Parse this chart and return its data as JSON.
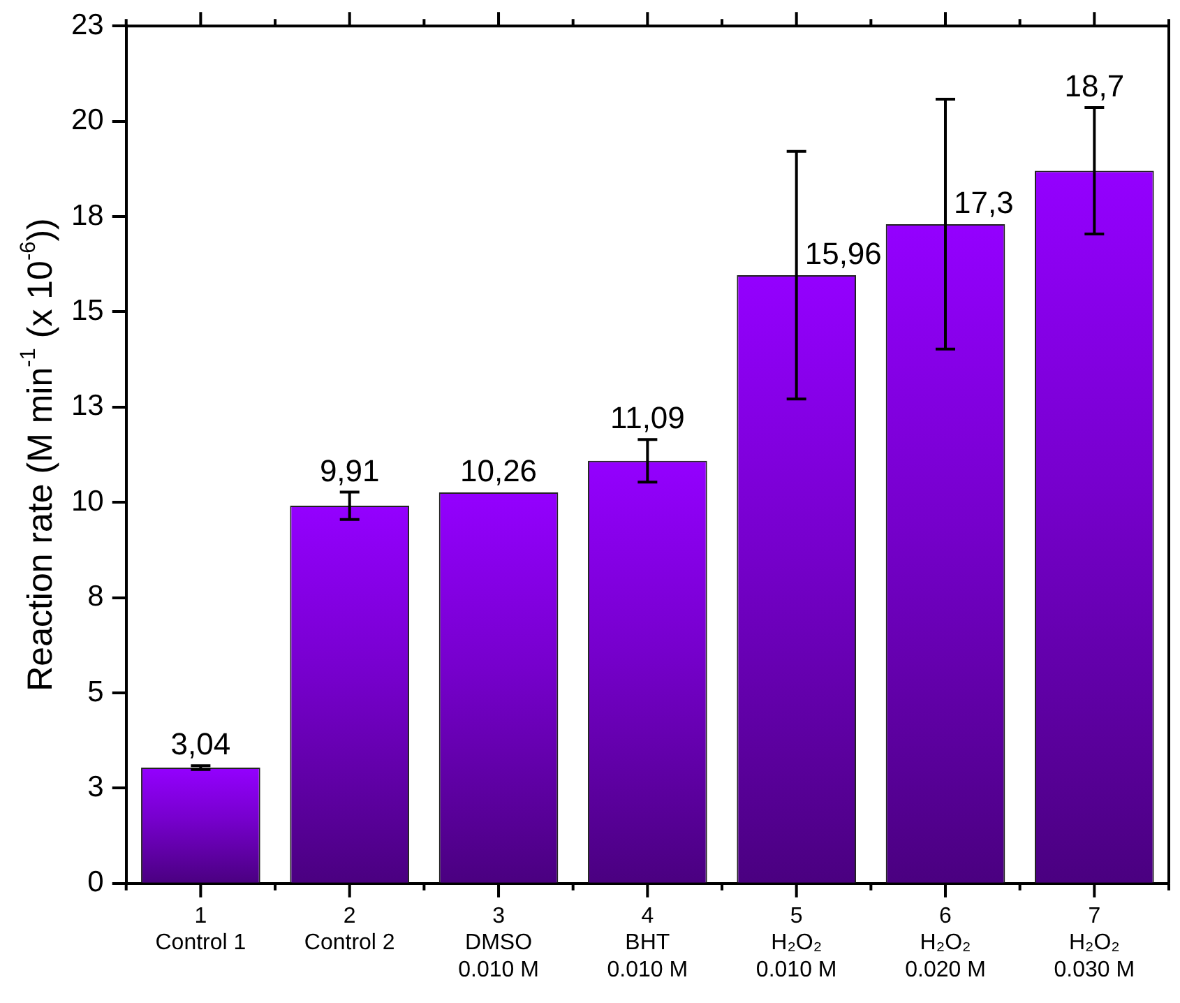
{
  "chart_data": {
    "type": "bar",
    "categories": [
      "1\nControl 1",
      "2\nControl 2",
      "3\nDMSO\n0.010 M",
      "4\nBHT\n0.010 M",
      "5\nH₂O₂\n0.010 M",
      "6\nH₂O₂\n0.020 M",
      "7\nH₂O₂\n0.030 M"
    ],
    "values": [
      3.04,
      9.91,
      10.26,
      11.09,
      15.96,
      17.3,
      18.7
    ],
    "errors": [
      0.05,
      0.36,
      null,
      0.56,
      3.25,
      3.28,
      1.66
    ],
    "value_labels": [
      "3,04",
      "9,91",
      "10,26",
      "11,09",
      "15,96",
      "17,3",
      "18,7"
    ],
    "color": "#9400ff",
    "ylabel": "Reaction rate (M min$^{-1}$ (x 10$^{-6}$))",
    "ylim": [
      0,
      22.5
    ],
    "yticks": [
      0,
      {
        "value": 2.5,
        "label": "3"
      },
      5,
      {
        "value": 7.5,
        "label": "8"
      },
      10,
      {
        "value": 12.5,
        "label": "13"
      },
      15,
      {
        "value": 17.5,
        "label": "18"
      },
      20,
      {
        "value": 22.5,
        "label": "23"
      }
    ],
    "grid": false,
    "legend": false
  }
}
